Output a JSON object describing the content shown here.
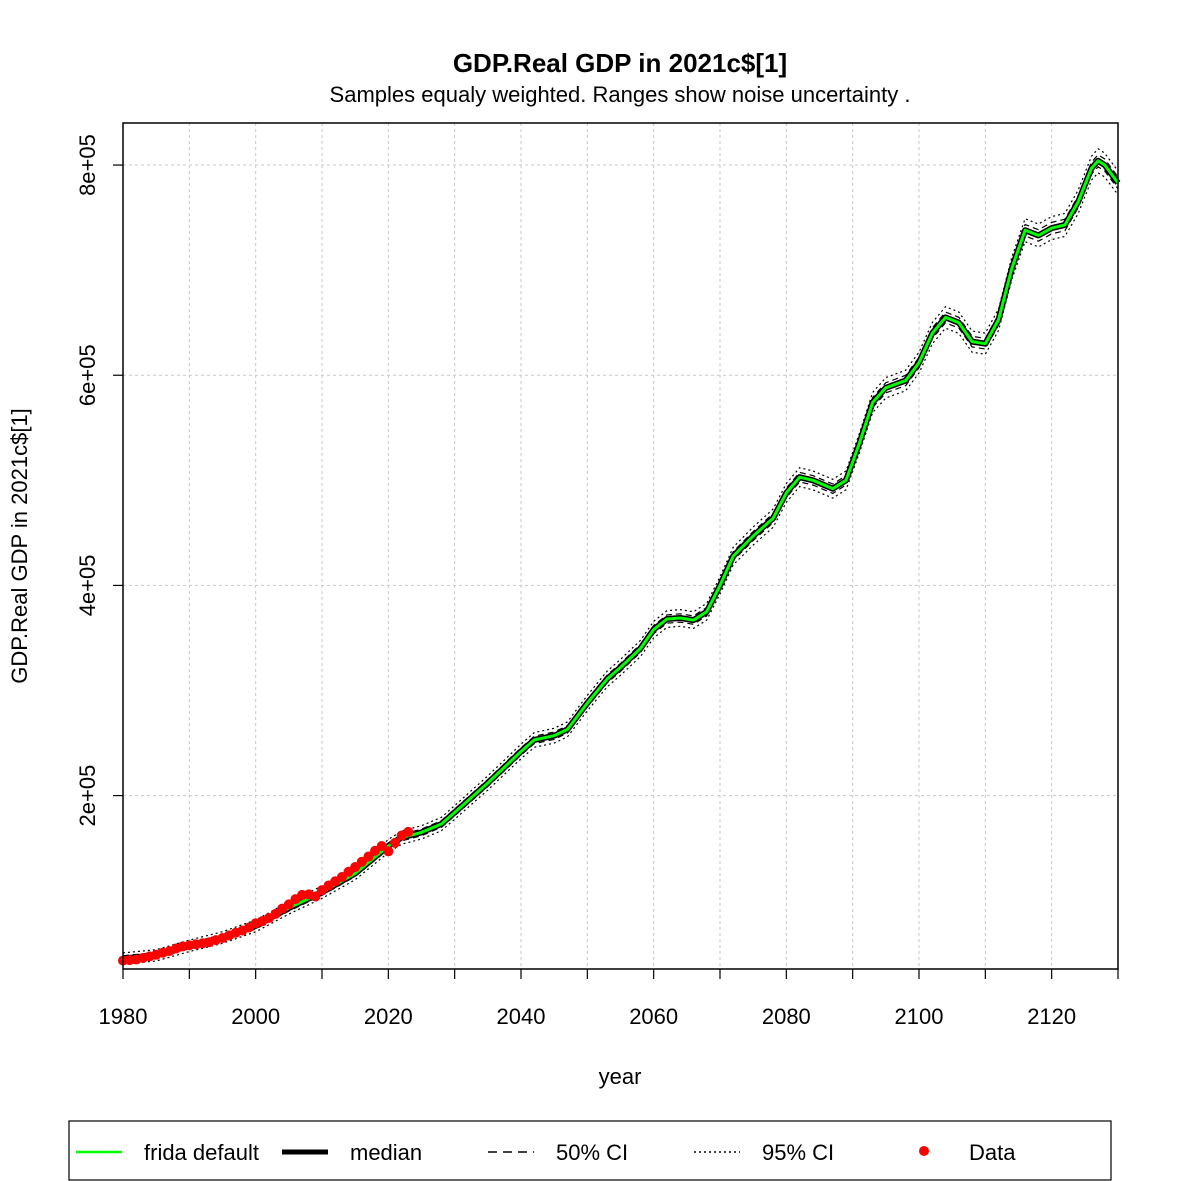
{
  "chart_data": {
    "type": "line",
    "title": "GDP.Real GDP in 2021c$[1]",
    "subtitle": "Samples equaly weighted. Ranges show  noise uncertainty .",
    "xlabel": "year",
    "ylabel": "GDP.Real GDP in 2021c$[1]",
    "xlim": [
      1980,
      2130
    ],
    "ylim": [
      35000,
      840000
    ],
    "x_ticks": [
      1980,
      2000,
      2020,
      2040,
      2060,
      2080,
      2100,
      2120
    ],
    "x_minor_ticks": [
      1990,
      2010,
      2030,
      2050,
      2070,
      2090,
      2110,
      2130
    ],
    "y_ticks": [
      200000,
      400000,
      600000,
      800000
    ],
    "y_tick_labels": [
      "2e+05",
      "4e+05",
      "6e+05",
      "8e+05"
    ],
    "grid": true,
    "legend_position": "bottom",
    "legend": [
      {
        "label": "frida default",
        "style": "solid",
        "color": "#00ff00"
      },
      {
        "label": "median",
        "style": "solid-thick",
        "color": "#000000"
      },
      {
        "label": "50% CI",
        "style": "dashed",
        "color": "#000000"
      },
      {
        "label": "95% CI",
        "style": "dotted",
        "color": "#000000"
      },
      {
        "label": "Data",
        "style": "point",
        "color": "#ff0000"
      }
    ],
    "series": [
      {
        "name": "frida default",
        "color": "#00ff00",
        "x": [
          1980,
          1985,
          1990,
          1995,
          2000,
          2005,
          2010,
          2015,
          2020,
          2022,
          2025,
          2028,
          2030,
          2035,
          2040,
          2042,
          2045,
          2047,
          2050,
          2053,
          2055,
          2058,
          2060,
          2062,
          2064,
          2066,
          2068,
          2070,
          2072,
          2075,
          2078,
          2080,
          2082,
          2084,
          2087,
          2089,
          2091,
          2093,
          2095,
          2098,
          2100,
          2102,
          2104,
          2106,
          2108,
          2110,
          2112,
          2114,
          2116,
          2118,
          2120,
          2122,
          2124,
          2126,
          2127,
          2128,
          2130
        ],
        "y": [
          45000,
          48000,
          57000,
          65000,
          76000,
          93000,
          108000,
          126000,
          152000,
          160000,
          165000,
          173000,
          184000,
          212000,
          242000,
          253000,
          257000,
          263000,
          288000,
          311000,
          322000,
          340000,
          358000,
          368000,
          369000,
          367000,
          375000,
          400000,
          428000,
          447000,
          464000,
          488000,
          503000,
          500000,
          492000,
          500000,
          535000,
          574000,
          588000,
          595000,
          612000,
          640000,
          655000,
          650000,
          632000,
          630000,
          653000,
          702000,
          738000,
          733000,
          740000,
          743000,
          765000,
          797000,
          804000,
          800000,
          783000
        ]
      }
    ],
    "data_points": {
      "name": "Data",
      "color": "#ff0000",
      "x": [
        1980,
        1981,
        1982,
        1983,
        1984,
        1985,
        1986,
        1987,
        1988,
        1989,
        1990,
        1991,
        1992,
        1993,
        1994,
        1995,
        1996,
        1997,
        1998,
        1999,
        2000,
        2001,
        2002,
        2003,
        2004,
        2005,
        2006,
        2007,
        2008,
        2009,
        2010,
        2011,
        2012,
        2013,
        2014,
        2015,
        2016,
        2017,
        2018,
        2019,
        2020,
        2021,
        2022,
        2023
      ],
      "y": [
        43000,
        43500,
        44000,
        45500,
        47000,
        48500,
        50500,
        52000,
        54500,
        56500,
        57500,
        58500,
        59500,
        60500,
        62500,
        64500,
        67000,
        69500,
        71500,
        74500,
        78500,
        80500,
        83500,
        87500,
        92500,
        96500,
        101500,
        105500,
        106000,
        104000,
        110000,
        114500,
        118500,
        122500,
        127500,
        132000,
        137000,
        142000,
        147500,
        152000,
        147000,
        155000,
        162000,
        165500
      ]
    }
  }
}
